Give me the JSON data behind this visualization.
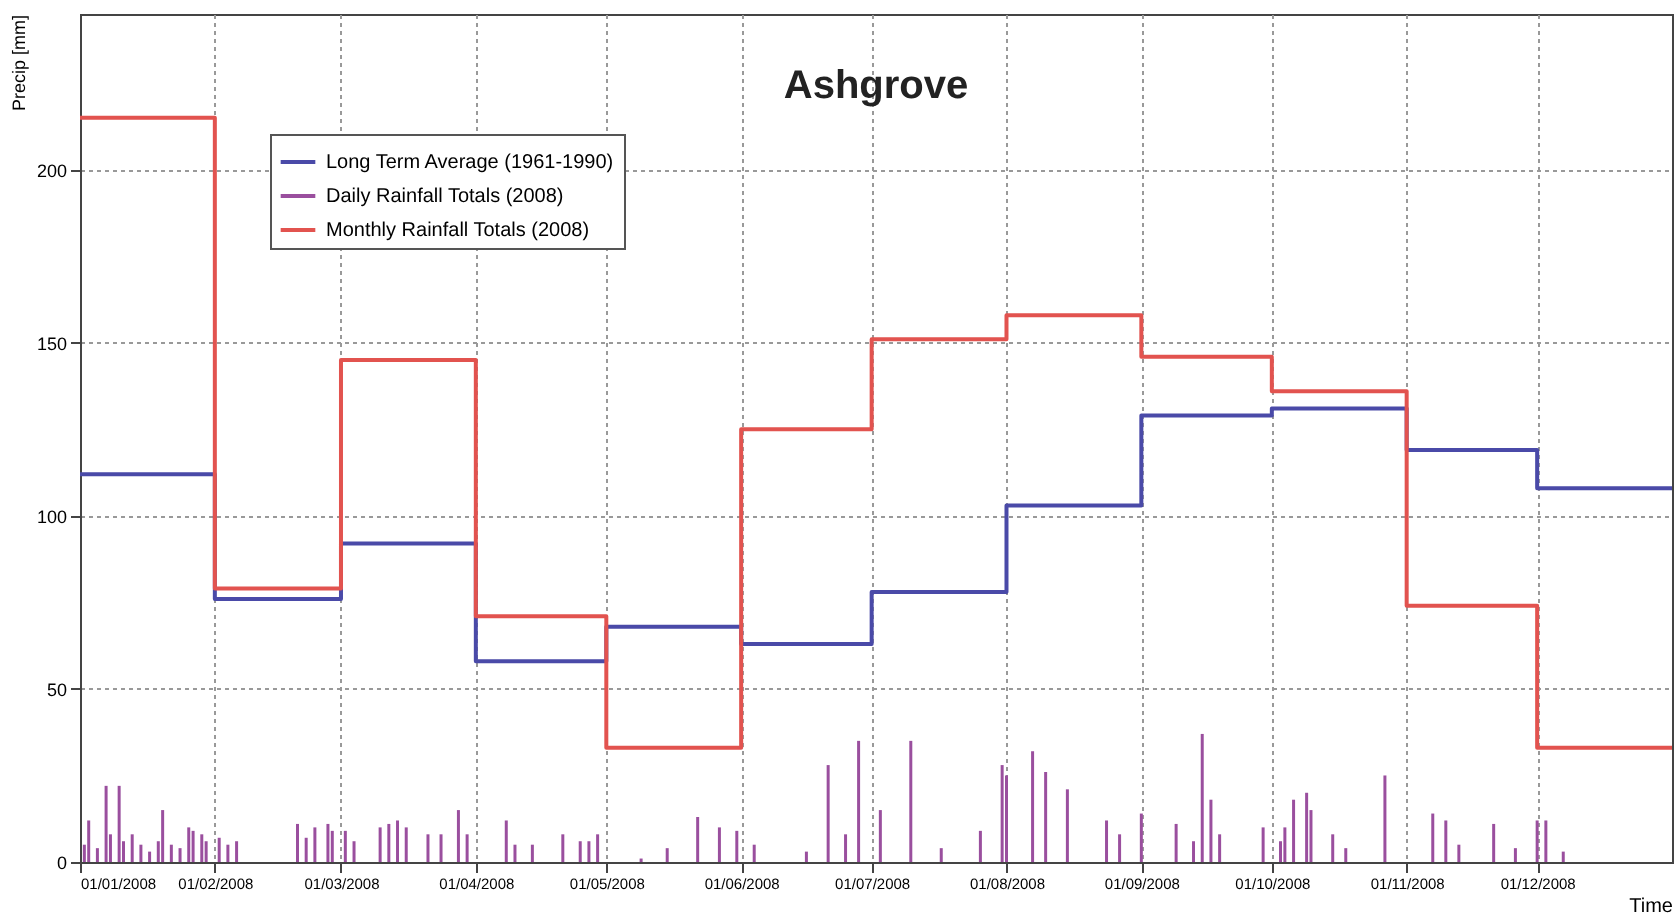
{
  "chart_data": {
    "type": "step",
    "title": "Ashgrove",
    "xlabel": "Time",
    "ylabel": "Precip [mm]",
    "xlim": [
      "2008-01-01",
      "2009-01-01"
    ],
    "ylim": [
      0,
      245
    ],
    "yticks": [
      0,
      50,
      100,
      150,
      200
    ],
    "xticks": [
      {
        "value": "2008-01-01",
        "label": "01/01/2008"
      },
      {
        "value": "2008-02-01",
        "label": "01/02/2008"
      },
      {
        "value": "2008-03-01",
        "label": "01/03/2008"
      },
      {
        "value": "2008-04-01",
        "label": "01/04/2008"
      },
      {
        "value": "2008-05-01",
        "label": "01/05/2008"
      },
      {
        "value": "2008-06-01",
        "label": "01/06/2008"
      },
      {
        "value": "2008-07-01",
        "label": "01/07/2008"
      },
      {
        "value": "2008-08-01",
        "label": "01/08/2008"
      },
      {
        "value": "2008-09-01",
        "label": "01/09/2008"
      },
      {
        "value": "2008-10-01",
        "label": "01/10/2008"
      },
      {
        "value": "2008-11-01",
        "label": "01/11/2008"
      },
      {
        "value": "2008-12-01",
        "label": "01/12/2008"
      }
    ],
    "grid": true,
    "legend": "top left",
    "series": [
      {
        "name": "Long Term Average (1961-1990)",
        "color": "#4a4aa8",
        "x": [
          "2008-01-01",
          "2008-02-01",
          "2008-03-01",
          "2008-04-01",
          "2008-05-01",
          "2008-06-01",
          "2008-07-01",
          "2008-08-01",
          "2008-09-01",
          "2008-10-01",
          "2008-11-01",
          "2008-12-01",
          "2009-01-01"
        ],
        "values": [
          112,
          76,
          92,
          58,
          68,
          63,
          78,
          103,
          129,
          131,
          119,
          108,
          108
        ]
      },
      {
        "name": "Daily Rainfall Totals (2008)",
        "type": "bar",
        "color": "#9a4f9e",
        "x": [
          "2008-01-02",
          "2008-01-03",
          "2008-01-05",
          "2008-01-07",
          "2008-01-08",
          "2008-01-10",
          "2008-01-11",
          "2008-01-13",
          "2008-01-15",
          "2008-01-17",
          "2008-01-19",
          "2008-01-20",
          "2008-01-22",
          "2008-01-24",
          "2008-01-26",
          "2008-01-27",
          "2008-01-29",
          "2008-01-30",
          "2008-02-02",
          "2008-02-04",
          "2008-02-06",
          "2008-02-20",
          "2008-02-22",
          "2008-02-24",
          "2008-02-27",
          "2008-02-28",
          "2008-03-02",
          "2008-03-04",
          "2008-03-10",
          "2008-03-12",
          "2008-03-14",
          "2008-03-16",
          "2008-03-21",
          "2008-03-24",
          "2008-03-28",
          "2008-03-30",
          "2008-04-08",
          "2008-04-10",
          "2008-04-14",
          "2008-04-21",
          "2008-04-25",
          "2008-04-27",
          "2008-04-29",
          "2008-05-09",
          "2008-05-15",
          "2008-05-22",
          "2008-05-27",
          "2008-05-31",
          "2008-06-04",
          "2008-06-16",
          "2008-06-21",
          "2008-06-25",
          "2008-06-28",
          "2008-07-03",
          "2008-07-10",
          "2008-07-17",
          "2008-07-26",
          "2008-07-31",
          "2008-08-01",
          "2008-08-07",
          "2008-08-10",
          "2008-08-15",
          "2008-08-24",
          "2008-08-27",
          "2008-09-01",
          "2008-09-09",
          "2008-09-13",
          "2008-09-15",
          "2008-09-17",
          "2008-09-19",
          "2008-09-29",
          "2008-10-03",
          "2008-10-04",
          "2008-10-06",
          "2008-10-09",
          "2008-10-10",
          "2008-10-15",
          "2008-10-18",
          "2008-10-27",
          "2008-11-07",
          "2008-11-10",
          "2008-11-13",
          "2008-11-21",
          "2008-11-26",
          "2008-12-01",
          "2008-12-03",
          "2008-12-07"
        ],
        "values": [
          5,
          12,
          4,
          22,
          8,
          22,
          6,
          8,
          5,
          3,
          6,
          15,
          5,
          4,
          10,
          9,
          8,
          6,
          7,
          5,
          6,
          11,
          7,
          10,
          11,
          9,
          9,
          6,
          10,
          11,
          12,
          10,
          8,
          8,
          15,
          8,
          12,
          5,
          5,
          8,
          6,
          6,
          8,
          1,
          4,
          13,
          10,
          9,
          5,
          3,
          28,
          8,
          35,
          15,
          35,
          4,
          9,
          28,
          25,
          32,
          26,
          21,
          12,
          8,
          14,
          11,
          6,
          37,
          18,
          8,
          10,
          6,
          10,
          18,
          20,
          15,
          8,
          4,
          25,
          14,
          12,
          5,
          11,
          4,
          12,
          12,
          3
        ]
      },
      {
        "name": "Monthly Rainfall Totals (2008)",
        "color": "#e2534f",
        "x": [
          "2008-01-01",
          "2008-02-01",
          "2008-03-01",
          "2008-04-01",
          "2008-05-01",
          "2008-06-01",
          "2008-07-01",
          "2008-08-01",
          "2008-09-01",
          "2008-10-01",
          "2008-11-01",
          "2008-12-01",
          "2009-01-01"
        ],
        "values": [
          215,
          79,
          145,
          71,
          33,
          125,
          151,
          158,
          146,
          136,
          74,
          33,
          33
        ]
      }
    ]
  }
}
